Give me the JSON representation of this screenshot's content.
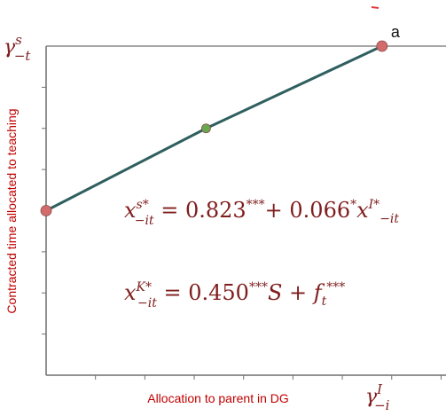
{
  "colors": {
    "axis": "#6f6f6f",
    "grid": "#d9d9d9",
    "line": "#2f5f5f",
    "point": "#d26b6b",
    "point_mid": "#6aa84f",
    "label_red": "#c00000",
    "equation": "#7f1d1d",
    "accent_mark": "#e23b3b"
  },
  "chart_data": {
    "type": "line",
    "xlabel": "Allocation to parent in DG",
    "ylabel": "Contracted time allocated to teaching",
    "x_end_label": {
      "sym": "γ",
      "sup": "I",
      "sub": "−i"
    },
    "y_top_label": {
      "sym": "γ",
      "sup": "s",
      "sub": "−t"
    },
    "xlim": [
      0,
      1
    ],
    "ylim": [
      0,
      1
    ],
    "x_ticks_count": 8,
    "y_ticks_count": 8,
    "series": [
      {
        "points": [
          {
            "x": 0.0,
            "y": 0.5
          },
          {
            "x": 0.4,
            "y": 0.75
          },
          {
            "x": 0.84,
            "y": 1.0
          }
        ]
      }
    ],
    "point_label": "a",
    "equations": [
      {
        "lhs_base": "x",
        "lhs_sup": "s*",
        "lhs_sub": "−it",
        "rhs": [
          {
            "t": " = 0.823"
          },
          {
            "t": "***",
            "sup": true
          },
          {
            "t": "+ 0.066"
          },
          {
            "t": "*",
            "sup": true
          },
          {
            "t": "x",
            "italic": true
          },
          {
            "t": "I*",
            "sup": true
          },
          {
            "t": "−it",
            "sub": true
          }
        ]
      },
      {
        "lhs_base": "x",
        "lhs_sup": "K*",
        "lhs_sub": "−it",
        "rhs": [
          {
            "t": " = 0.450"
          },
          {
            "t": "***",
            "sup": true
          },
          {
            "t": "S",
            "italic": true
          },
          {
            "t": " + "
          },
          {
            "t": "f",
            "italic": true
          },
          {
            "t": "t",
            "sub": true
          },
          {
            "t": "***",
            "sup": true
          }
        ]
      }
    ]
  }
}
